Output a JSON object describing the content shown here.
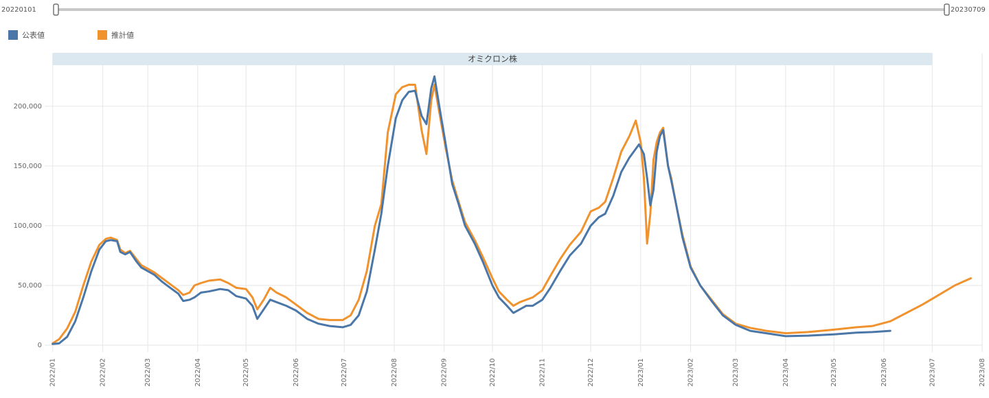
{
  "range_slider": {
    "start_label": "20220101",
    "end_label": "20230709"
  },
  "legend": [
    {
      "name": "公表値",
      "color": "#4a77a8"
    },
    {
      "name": "推計値",
      "color": "#f0922e"
    }
  ],
  "annotation_band": {
    "label": "オミクロン株",
    "start": "2022-01-01",
    "end": "2023-07-01",
    "color": "#dbe8ef"
  },
  "chart_data": {
    "type": "line",
    "title": "",
    "xlabel": "",
    "ylabel": "",
    "xlim": [
      "2021-12-27",
      "2023-08-01"
    ],
    "ylim": [
      0,
      220000
    ],
    "y_ticks": [
      0,
      50000,
      100000,
      150000,
      200000
    ],
    "y_tick_labels": [
      "0",
      "50,000",
      "100,000",
      "150,000",
      "200,000"
    ],
    "x_ticks": [
      "2022-01-01",
      "2022-02-01",
      "2022-03-01",
      "2022-04-01",
      "2022-05-01",
      "2022-06-01",
      "2022-07-01",
      "2022-08-01",
      "2022-09-01",
      "2022-10-01",
      "2022-11-01",
      "2022-12-01",
      "2023-01-01",
      "2023-02-01",
      "2023-03-01",
      "2023-04-01",
      "2023-05-01",
      "2023-06-01",
      "2023-07-01",
      "2023-08-01"
    ],
    "x_tick_labels": [
      "2022/01",
      "2022/02",
      "2022/03",
      "2022/04",
      "2022/05",
      "2022/06",
      "2022/07",
      "2022/08",
      "2022/09",
      "2022/10",
      "2022/11",
      "2022/12",
      "2023/01",
      "2023/02",
      "2023/03",
      "2023/04",
      "2023/05",
      "2023/06",
      "2023/07",
      "2023/08"
    ],
    "grid": true,
    "legend_position": "top-left",
    "series": [
      {
        "name": "公表値",
        "color": "#4a77a8",
        "points": [
          [
            "2022-01-01",
            1000
          ],
          [
            "2022-01-05",
            1500
          ],
          [
            "2022-01-10",
            7000
          ],
          [
            "2022-01-15",
            20000
          ],
          [
            "2022-01-20",
            40000
          ],
          [
            "2022-01-25",
            62000
          ],
          [
            "2022-01-30",
            80000
          ],
          [
            "2022-02-03",
            87000
          ],
          [
            "2022-02-06",
            88000
          ],
          [
            "2022-02-10",
            87000
          ],
          [
            "2022-02-12",
            78000
          ],
          [
            "2022-02-15",
            76000
          ],
          [
            "2022-02-18",
            78000
          ],
          [
            "2022-02-22",
            70000
          ],
          [
            "2022-02-25",
            65000
          ],
          [
            "2022-03-01",
            62000
          ],
          [
            "2022-03-05",
            59000
          ],
          [
            "2022-03-10",
            53000
          ],
          [
            "2022-03-15",
            48000
          ],
          [
            "2022-03-20",
            43000
          ],
          [
            "2022-03-23",
            37000
          ],
          [
            "2022-03-27",
            38000
          ],
          [
            "2022-03-30",
            40000
          ],
          [
            "2022-04-03",
            44000
          ],
          [
            "2022-04-08",
            45000
          ],
          [
            "2022-04-15",
            47000
          ],
          [
            "2022-04-20",
            46000
          ],
          [
            "2022-04-25",
            41000
          ],
          [
            "2022-05-01",
            39000
          ],
          [
            "2022-05-05",
            33000
          ],
          [
            "2022-05-08",
            22000
          ],
          [
            "2022-05-12",
            30000
          ],
          [
            "2022-05-16",
            38000
          ],
          [
            "2022-05-20",
            36000
          ],
          [
            "2022-05-26",
            33000
          ],
          [
            "2022-06-01",
            29000
          ],
          [
            "2022-06-08",
            22000
          ],
          [
            "2022-06-15",
            18000
          ],
          [
            "2022-06-22",
            16000
          ],
          [
            "2022-06-30",
            15000
          ],
          [
            "2022-07-05",
            17000
          ],
          [
            "2022-07-10",
            25000
          ],
          [
            "2022-07-15",
            45000
          ],
          [
            "2022-07-20",
            80000
          ],
          [
            "2022-07-24",
            110000
          ],
          [
            "2022-07-28",
            150000
          ],
          [
            "2022-08-02",
            190000
          ],
          [
            "2022-08-06",
            205000
          ],
          [
            "2022-08-10",
            212000
          ],
          [
            "2022-08-14",
            213000
          ],
          [
            "2022-08-18",
            192000
          ],
          [
            "2022-08-21",
            185000
          ],
          [
            "2022-08-24",
            215000
          ],
          [
            "2022-08-26",
            225000
          ],
          [
            "2022-08-29",
            200000
          ],
          [
            "2022-09-02",
            168000
          ],
          [
            "2022-09-06",
            135000
          ],
          [
            "2022-09-10",
            118000
          ],
          [
            "2022-09-14",
            100000
          ],
          [
            "2022-09-20",
            85000
          ],
          [
            "2022-09-25",
            70000
          ],
          [
            "2022-10-01",
            50000
          ],
          [
            "2022-10-05",
            40000
          ],
          [
            "2022-10-10",
            33000
          ],
          [
            "2022-10-14",
            27000
          ],
          [
            "2022-10-18",
            30000
          ],
          [
            "2022-10-22",
            33000
          ],
          [
            "2022-10-26",
            33000
          ],
          [
            "2022-11-01",
            38000
          ],
          [
            "2022-11-06",
            48000
          ],
          [
            "2022-11-12",
            62000
          ],
          [
            "2022-11-18",
            75000
          ],
          [
            "2022-11-25",
            85000
          ],
          [
            "2022-12-01",
            100000
          ],
          [
            "2022-12-06",
            107000
          ],
          [
            "2022-12-10",
            110000
          ],
          [
            "2022-12-15",
            125000
          ],
          [
            "2022-12-20",
            145000
          ],
          [
            "2022-12-25",
            157000
          ],
          [
            "2022-12-31",
            168000
          ],
          [
            "2023-01-03",
            160000
          ],
          [
            "2023-01-05",
            140000
          ],
          [
            "2023-01-07",
            117000
          ],
          [
            "2023-01-09",
            130000
          ],
          [
            "2023-01-11",
            162000
          ],
          [
            "2023-01-13",
            175000
          ],
          [
            "2023-01-15",
            180000
          ],
          [
            "2023-01-18",
            150000
          ],
          [
            "2023-01-20",
            138000
          ],
          [
            "2023-01-23",
            118000
          ],
          [
            "2023-01-27",
            90000
          ],
          [
            "2023-02-01",
            65000
          ],
          [
            "2023-02-07",
            50000
          ],
          [
            "2023-02-14",
            37000
          ],
          [
            "2023-02-21",
            25000
          ],
          [
            "2023-03-01",
            17000
          ],
          [
            "2023-03-10",
            12000
          ],
          [
            "2023-03-20",
            10000
          ],
          [
            "2023-04-01",
            7500
          ],
          [
            "2023-04-15",
            8000
          ],
          [
            "2023-05-01",
            9000
          ],
          [
            "2023-05-15",
            10500
          ],
          [
            "2023-05-25",
            11000
          ],
          [
            "2023-06-05",
            12000
          ]
        ]
      },
      {
        "name": "推計値",
        "color": "#f0922e",
        "points": [
          [
            "2022-01-01",
            1500
          ],
          [
            "2022-01-05",
            5000
          ],
          [
            "2022-01-10",
            14000
          ],
          [
            "2022-01-15",
            28000
          ],
          [
            "2022-01-20",
            50000
          ],
          [
            "2022-01-25",
            70000
          ],
          [
            "2022-01-30",
            84000
          ],
          [
            "2022-02-03",
            89000
          ],
          [
            "2022-02-06",
            90000
          ],
          [
            "2022-02-10",
            88000
          ],
          [
            "2022-02-12",
            80000
          ],
          [
            "2022-02-15",
            77000
          ],
          [
            "2022-02-18",
            79000
          ],
          [
            "2022-02-22",
            72000
          ],
          [
            "2022-02-25",
            67000
          ],
          [
            "2022-03-01",
            64000
          ],
          [
            "2022-03-05",
            61000
          ],
          [
            "2022-03-10",
            56000
          ],
          [
            "2022-03-15",
            51000
          ],
          [
            "2022-03-20",
            46000
          ],
          [
            "2022-03-23",
            42000
          ],
          [
            "2022-03-27",
            44000
          ],
          [
            "2022-03-30",
            50000
          ],
          [
            "2022-04-03",
            52000
          ],
          [
            "2022-04-08",
            54000
          ],
          [
            "2022-04-15",
            55000
          ],
          [
            "2022-04-20",
            52000
          ],
          [
            "2022-04-25",
            48000
          ],
          [
            "2022-05-01",
            47000
          ],
          [
            "2022-05-05",
            40000
          ],
          [
            "2022-05-08",
            30000
          ],
          [
            "2022-05-12",
            38000
          ],
          [
            "2022-05-16",
            48000
          ],
          [
            "2022-05-20",
            44000
          ],
          [
            "2022-05-26",
            40000
          ],
          [
            "2022-06-01",
            34000
          ],
          [
            "2022-06-08",
            27000
          ],
          [
            "2022-06-15",
            22000
          ],
          [
            "2022-06-22",
            21000
          ],
          [
            "2022-06-30",
            21000
          ],
          [
            "2022-07-05",
            25000
          ],
          [
            "2022-07-10",
            38000
          ],
          [
            "2022-07-15",
            62000
          ],
          [
            "2022-07-20",
            100000
          ],
          [
            "2022-07-24",
            118000
          ],
          [
            "2022-07-28",
            178000
          ],
          [
            "2022-08-02",
            210000
          ],
          [
            "2022-08-06",
            216000
          ],
          [
            "2022-08-10",
            218000
          ],
          [
            "2022-08-14",
            218000
          ],
          [
            "2022-08-18",
            180000
          ],
          [
            "2022-08-21",
            160000
          ],
          [
            "2022-08-24",
            205000
          ],
          [
            "2022-08-26",
            218000
          ],
          [
            "2022-08-29",
            195000
          ],
          [
            "2022-09-02",
            165000
          ],
          [
            "2022-09-06",
            138000
          ],
          [
            "2022-09-10",
            120000
          ],
          [
            "2022-09-14",
            103000
          ],
          [
            "2022-09-20",
            88000
          ],
          [
            "2022-09-25",
            74000
          ],
          [
            "2022-10-01",
            56000
          ],
          [
            "2022-10-05",
            45000
          ],
          [
            "2022-10-10",
            38000
          ],
          [
            "2022-10-14",
            33000
          ],
          [
            "2022-10-18",
            36000
          ],
          [
            "2022-10-22",
            38000
          ],
          [
            "2022-10-26",
            40000
          ],
          [
            "2022-11-01",
            46000
          ],
          [
            "2022-11-06",
            58000
          ],
          [
            "2022-11-12",
            72000
          ],
          [
            "2022-11-18",
            84000
          ],
          [
            "2022-11-25",
            95000
          ],
          [
            "2022-12-01",
            112000
          ],
          [
            "2022-12-06",
            115000
          ],
          [
            "2022-12-10",
            120000
          ],
          [
            "2022-12-15",
            140000
          ],
          [
            "2022-12-20",
            162000
          ],
          [
            "2022-12-25",
            175000
          ],
          [
            "2022-12-29",
            188000
          ],
          [
            "2023-01-01",
            170000
          ],
          [
            "2023-01-03",
            140000
          ],
          [
            "2023-01-05",
            85000
          ],
          [
            "2023-01-07",
            110000
          ],
          [
            "2023-01-09",
            155000
          ],
          [
            "2023-01-11",
            170000
          ],
          [
            "2023-01-13",
            178000
          ],
          [
            "2023-01-15",
            182000
          ],
          [
            "2023-01-18",
            150000
          ],
          [
            "2023-01-20",
            140000
          ],
          [
            "2023-01-23",
            118000
          ],
          [
            "2023-01-27",
            92000
          ],
          [
            "2023-02-01",
            66000
          ],
          [
            "2023-02-07",
            50000
          ],
          [
            "2023-02-14",
            38000
          ],
          [
            "2023-02-21",
            26000
          ],
          [
            "2023-03-01",
            18000
          ],
          [
            "2023-03-10",
            14500
          ],
          [
            "2023-03-20",
            12000
          ],
          [
            "2023-04-01",
            10000
          ],
          [
            "2023-04-15",
            11000
          ],
          [
            "2023-05-01",
            13000
          ],
          [
            "2023-05-15",
            15000
          ],
          [
            "2023-05-25",
            16000
          ],
          [
            "2023-06-05",
            20000
          ],
          [
            "2023-06-15",
            27000
          ],
          [
            "2023-06-25",
            34000
          ],
          [
            "2023-07-05",
            42000
          ],
          [
            "2023-07-15",
            50000
          ],
          [
            "2023-07-25",
            56000
          ]
        ]
      }
    ]
  }
}
